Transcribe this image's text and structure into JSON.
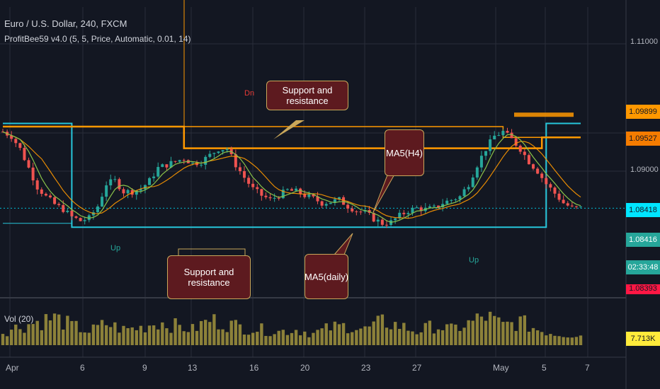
{
  "header": {
    "symbol_line": "Euro / U.S. Dollar, 240, FXCM",
    "indicator_line": "ProfitBee59 v4.0 (5, 5, Price, Automatic, 0.01, 14)",
    "volume_label": "Vol (20)"
  },
  "callouts": {
    "sr_top": "Support and resistance",
    "ma_h4": "MA5(H4)",
    "sr_bottom": "Support and resistance",
    "ma_daily": "MA5(daily)"
  },
  "markers": {
    "dn1": "Dn",
    "up1": "Up",
    "up2": "Up"
  },
  "price_axis": {
    "grid_labels": [
      "1.11000",
      "1.09000"
    ],
    "boxes": [
      {
        "text": "1.09899",
        "bg": "#ff9800",
        "fg": "#131722"
      },
      {
        "text": "1.09527",
        "bg": "#f57c00",
        "fg": "#131722"
      },
      {
        "text": "1.08418",
        "bg": "#00e5ff",
        "fg": "#131722"
      },
      {
        "text": "1.08416",
        "bg": "#26a69a",
        "fg": "#ffffff"
      },
      {
        "text": "02:33:48",
        "bg": "#26a69a",
        "fg": "#ffffff"
      },
      {
        "text": "1.08393",
        "bg": "#ff1744",
        "fg": "#131722"
      },
      {
        "text": "7.713K",
        "bg": "#ffeb3b",
        "fg": "#131722"
      }
    ]
  },
  "date_axis": [
    "Apr",
    "6",
    "9",
    "13",
    "16",
    "20",
    "23",
    "27",
    "May",
    "5",
    "7"
  ],
  "colors": {
    "background": "#131722",
    "bull": "#26a69a",
    "bear": "#ef5350",
    "sr_orange": "#ff9800",
    "sr_teal": "#26c6da",
    "ma_green": "#8bc34a",
    "ma_orange": "#ff9800",
    "volume": "#b5a642"
  },
  "chart_data": {
    "type": "candlestick",
    "title": "Euro / U.S. Dollar, 240, FXCM",
    "y_grid": [
      1.11,
      1.09
    ],
    "reference_prices": [
      1.09899,
      1.09527,
      1.08418,
      1.08416,
      1.08393
    ],
    "close_path": [
      [
        0,
        1.0962
      ],
      [
        2,
        1.0955
      ],
      [
        4,
        1.0935
      ],
      [
        6,
        1.0905
      ],
      [
        8,
        1.0875
      ],
      [
        10,
        1.086
      ],
      [
        12,
        1.0848
      ],
      [
        14,
        1.084
      ],
      [
        16,
        1.0828
      ],
      [
        18,
        1.0822
      ],
      [
        20,
        1.0826
      ],
      [
        22,
        1.0845
      ],
      [
        24,
        1.088
      ],
      [
        26,
        1.0885
      ],
      [
        28,
        1.0868
      ],
      [
        30,
        1.0868
      ],
      [
        32,
        1.0872
      ],
      [
        34,
        1.0885
      ],
      [
        36,
        1.0905
      ],
      [
        38,
        1.091
      ],
      [
        40,
        1.0915
      ],
      [
        42,
        1.092
      ],
      [
        44,
        1.0912
      ],
      [
        46,
        1.0915
      ],
      [
        48,
        1.0925
      ],
      [
        50,
        1.0935
      ],
      [
        52,
        1.0935
      ],
      [
        54,
        1.091
      ],
      [
        56,
        1.089
      ],
      [
        58,
        1.0872
      ],
      [
        60,
        1.0862
      ],
      [
        62,
        1.0855
      ],
      [
        64,
        1.0862
      ],
      [
        66,
        1.087
      ],
      [
        68,
        1.0868
      ],
      [
        70,
        1.0862
      ],
      [
        72,
        1.0857
      ],
      [
        74,
        1.085
      ],
      [
        76,
        1.0852
      ],
      [
        78,
        1.0855
      ],
      [
        80,
        1.0845
      ],
      [
        82,
        1.0838
      ],
      [
        84,
        1.0835
      ],
      [
        86,
        1.0825
      ],
      [
        88,
        1.0818
      ],
      [
        90,
        1.082
      ],
      [
        92,
        1.083
      ],
      [
        94,
        1.0838
      ],
      [
        96,
        1.0842
      ],
      [
        98,
        1.084
      ],
      [
        100,
        1.0842
      ],
      [
        102,
        1.085
      ],
      [
        104,
        1.0855
      ],
      [
        106,
        1.086
      ],
      [
        108,
        1.088
      ],
      [
        110,
        1.091
      ],
      [
        112,
        1.0935
      ],
      [
        114,
        1.0955
      ],
      [
        116,
        1.0962
      ],
      [
        118,
        1.095
      ],
      [
        120,
        1.0935
      ],
      [
        122,
        1.0915
      ],
      [
        124,
        1.09
      ],
      [
        126,
        1.088
      ],
      [
        128,
        1.0865
      ],
      [
        130,
        1.085
      ],
      [
        132,
        1.0842
      ],
      [
        134,
        1.0842
      ]
    ],
    "volume_path": [
      [
        0,
        3.5
      ],
      [
        4,
        4.8
      ],
      [
        8,
        6.0
      ],
      [
        12,
        7.0
      ],
      [
        16,
        5.0
      ],
      [
        20,
        3.5
      ],
      [
        24,
        5.5
      ],
      [
        28,
        4.0
      ],
      [
        32,
        4.5
      ],
      [
        36,
        6.0
      ],
      [
        40,
        5.0
      ],
      [
        44,
        4.0
      ],
      [
        48,
        6.5
      ],
      [
        52,
        5.5
      ],
      [
        56,
        4.5
      ],
      [
        60,
        4.0
      ],
      [
        64,
        3.5
      ],
      [
        68,
        4.0
      ],
      [
        72,
        3.0
      ],
      [
        76,
        4.5
      ],
      [
        80,
        5.0
      ],
      [
        84,
        4.0
      ],
      [
        88,
        6.0
      ],
      [
        92,
        5.0
      ],
      [
        96,
        3.5
      ],
      [
        100,
        5.0
      ],
      [
        104,
        4.0
      ],
      [
        108,
        5.5
      ],
      [
        112,
        7.5
      ],
      [
        116,
        5.0
      ],
      [
        120,
        6.0
      ],
      [
        124,
        4.0
      ],
      [
        128,
        3.0
      ],
      [
        134,
        2.5
      ]
    ],
    "sr_orange_steps": [
      [
        0,
        1.097
      ],
      [
        42,
        1.097
      ],
      [
        42,
        1.0936
      ],
      [
        125,
        1.0936
      ],
      [
        125,
        1.0953
      ],
      [
        134,
        1.0953
      ]
    ],
    "sr_orange_upper": [
      [
        42,
        1.097
      ],
      [
        116,
        1.097
      ],
      [
        116,
        1.0953
      ],
      [
        134,
        1.0953
      ]
    ],
    "sr_teal_steps": [
      [
        0,
        1.0975
      ],
      [
        16,
        1.0975
      ],
      [
        16,
        1.0812
      ],
      [
        126,
        1.0812
      ],
      [
        126,
        1.0975
      ],
      [
        134,
        1.0975
      ]
    ],
    "sr_teal_lower": [
      [
        0,
        1.0818
      ],
      [
        16,
        1.0818
      ]
    ]
  }
}
